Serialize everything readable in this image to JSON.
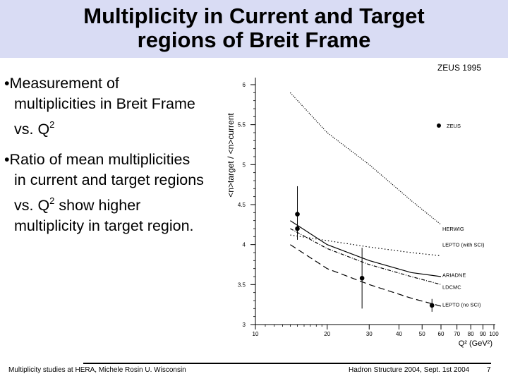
{
  "slide": {
    "title_line1": "Multiplicity in Current and Target",
    "title_line2": "regions of Breit Frame",
    "bullets": [
      {
        "symbol": "•",
        "lines": [
          "Measurement of",
          "multiplicities in Breit Frame"
        ],
        "q_line_prefix": "vs. Q",
        "q_line_sup": "2"
      },
      {
        "symbol": "•",
        "lines": [
          "Ratio of mean multiplicities",
          "in current and target regions"
        ],
        "q_line_prefix": "vs. Q",
        "q_line_sup": "2",
        "q_line_suffix": " show higher",
        "last_line": "multiplicity in target region."
      }
    ],
    "footer_left": "Multiplicity studies at HERA, Michele Rosin U. Wisconsin",
    "footer_right": "Hadron Structure 2004, Sept. 1st 2004",
    "page_number": "7"
  },
  "chart_data": {
    "type": "line",
    "title": "ZEUS 1995",
    "ylabel": "<n>target / <n>current",
    "xlabel": "Q² (GeV²)",
    "x_scale": "log",
    "xlim": [
      10,
      100
    ],
    "ylim": [
      3,
      6
    ],
    "x_ticks": [
      10,
      20,
      30,
      40,
      50,
      60,
      70,
      80,
      90,
      100
    ],
    "y_ticks": [
      3,
      3.5,
      4,
      4.5,
      5,
      5.5,
      6
    ],
    "y_tick_labels": [
      "3",
      "3.5",
      "4",
      "4.5",
      "5",
      "5.5",
      "6"
    ],
    "x_tick_labels": [
      "10",
      "20",
      "30",
      "40",
      "50",
      "60",
      "70",
      "80",
      "90",
      "100"
    ],
    "legend": [
      {
        "label": "ZEUS",
        "marker": "circle"
      }
    ],
    "legend_position": "top-right",
    "data_points": {
      "name": "ZEUS",
      "x": [
        15,
        15,
        28,
        55
      ],
      "y": [
        4.38,
        4.2,
        3.58,
        3.24
      ],
      "yerr_low": [
        0.25,
        0.14,
        0.38,
        0.08
      ],
      "yerr_high": [
        0.35,
        0.14,
        0.38,
        0.08
      ]
    },
    "curves": [
      {
        "name": "HERWIG",
        "style": "dotted-dense",
        "x": [
          14,
          20,
          30,
          45,
          60
        ],
        "y": [
          5.9,
          5.4,
          5.0,
          4.55,
          4.25
        ]
      },
      {
        "name": "LEPTO (with SCI)",
        "style": "dotted",
        "x": [
          14,
          20,
          30,
          45,
          60
        ],
        "y": [
          4.12,
          4.05,
          3.97,
          3.9,
          3.86
        ]
      },
      {
        "name": "ARIADNE",
        "style": "solid",
        "x": [
          14,
          20,
          30,
          45,
          60
        ],
        "y": [
          4.3,
          4.0,
          3.8,
          3.65,
          3.6
        ]
      },
      {
        "name": "LDCMC",
        "style": "dash-dot",
        "x": [
          14,
          20,
          30,
          45,
          60
        ],
        "y": [
          4.2,
          3.95,
          3.75,
          3.6,
          3.5
        ]
      },
      {
        "name": "LEPTO (no SCI)",
        "style": "dashed",
        "x": [
          14,
          20,
          30,
          45,
          60
        ],
        "y": [
          4.0,
          3.7,
          3.5,
          3.33,
          3.23
        ]
      }
    ],
    "colors": {
      "line": "#000000",
      "background": "#ffffff"
    }
  }
}
